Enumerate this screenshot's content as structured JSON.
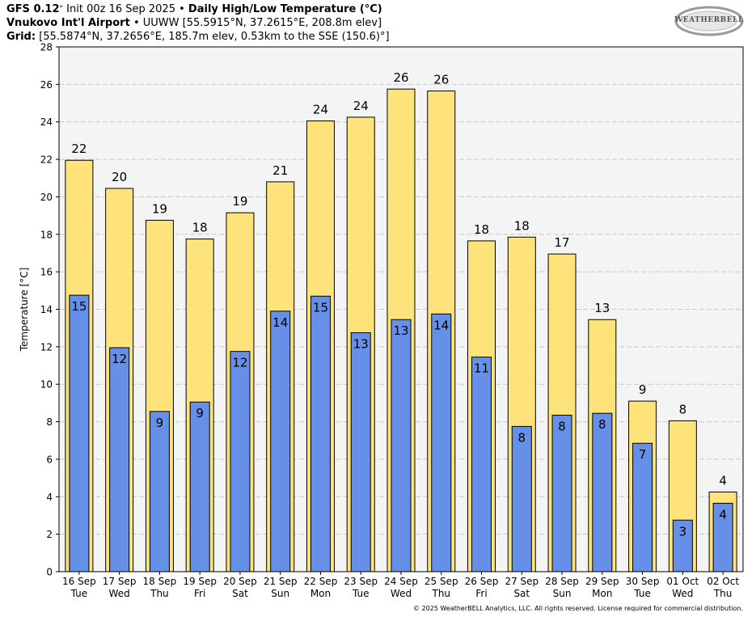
{
  "header": {
    "model": "GFS 0.12",
    "model_unit": "°",
    "init": "Init 00z 16 Sep 2025",
    "sep": "•",
    "product": "Daily High/Low Temperature (°C)",
    "station_name": "Vnukovo Int'l Airport",
    "station_details": "UUWW [55.5915°N, 37.2615°E, 208.8m elev]",
    "grid_label": "Grid",
    "grid_details": "[55.5874°N, 37.2656°E, 185.7m elev, 0.53km to the SSE (150.6)°]"
  },
  "logo": {
    "text": "WEATHERBELL"
  },
  "footer": {
    "copyright": "© 2025 WeatherBELL Analytics, LLC. All rights reserved. License required for commercial distribution."
  },
  "colors": {
    "high": "#fde37a",
    "low": "#6690e8",
    "plot_bg": "#f4f4f4",
    "grid": "#c8c8c8"
  },
  "chart_data": {
    "type": "bar",
    "ylabel": "Temperature [°C]",
    "ylim": [
      0,
      28
    ],
    "yticks": [
      0,
      2,
      4,
      6,
      8,
      10,
      12,
      14,
      16,
      18,
      20,
      22,
      24,
      26,
      28
    ],
    "grid": true,
    "categories": [
      {
        "date": "16 Sep",
        "day": "Tue"
      },
      {
        "date": "17 Sep",
        "day": "Wed"
      },
      {
        "date": "18 Sep",
        "day": "Thu"
      },
      {
        "date": "19 Sep",
        "day": "Fri"
      },
      {
        "date": "20 Sep",
        "day": "Sat"
      },
      {
        "date": "21 Sep",
        "day": "Sun"
      },
      {
        "date": "22 Sep",
        "day": "Mon"
      },
      {
        "date": "23 Sep",
        "day": "Tue"
      },
      {
        "date": "24 Sep",
        "day": "Wed"
      },
      {
        "date": "25 Sep",
        "day": "Thu"
      },
      {
        "date": "26 Sep",
        "day": "Fri"
      },
      {
        "date": "27 Sep",
        "day": "Sat"
      },
      {
        "date": "28 Sep",
        "day": "Sun"
      },
      {
        "date": "29 Sep",
        "day": "Mon"
      },
      {
        "date": "30 Sep",
        "day": "Tue"
      },
      {
        "date": "01 Oct",
        "day": "Wed"
      },
      {
        "date": "02 Oct",
        "day": "Thu"
      }
    ],
    "series": [
      {
        "values": [
          21.95,
          20.45,
          18.75,
          17.75,
          19.15,
          20.8,
          24.05,
          24.25,
          25.75,
          25.65,
          17.65,
          17.85,
          16.95,
          13.45,
          9.1,
          8.05,
          4.25
        ],
        "labels": [
          "22",
          "20",
          "19",
          "18",
          "19",
          "21",
          "24",
          "24",
          "26",
          "26",
          "18",
          "18",
          "17",
          "13",
          "9",
          "8",
          "4"
        ]
      },
      {
        "values": [
          14.75,
          11.95,
          8.55,
          9.05,
          11.75,
          13.9,
          14.7,
          12.75,
          13.45,
          13.75,
          11.45,
          7.75,
          8.35,
          8.45,
          6.85,
          2.75,
          3.65
        ],
        "labels": [
          "15",
          "12",
          "9",
          "9",
          "12",
          "14",
          "15",
          "13",
          "13",
          "14",
          "11",
          "8",
          "8",
          "8",
          "7",
          "3",
          "4"
        ]
      }
    ]
  }
}
